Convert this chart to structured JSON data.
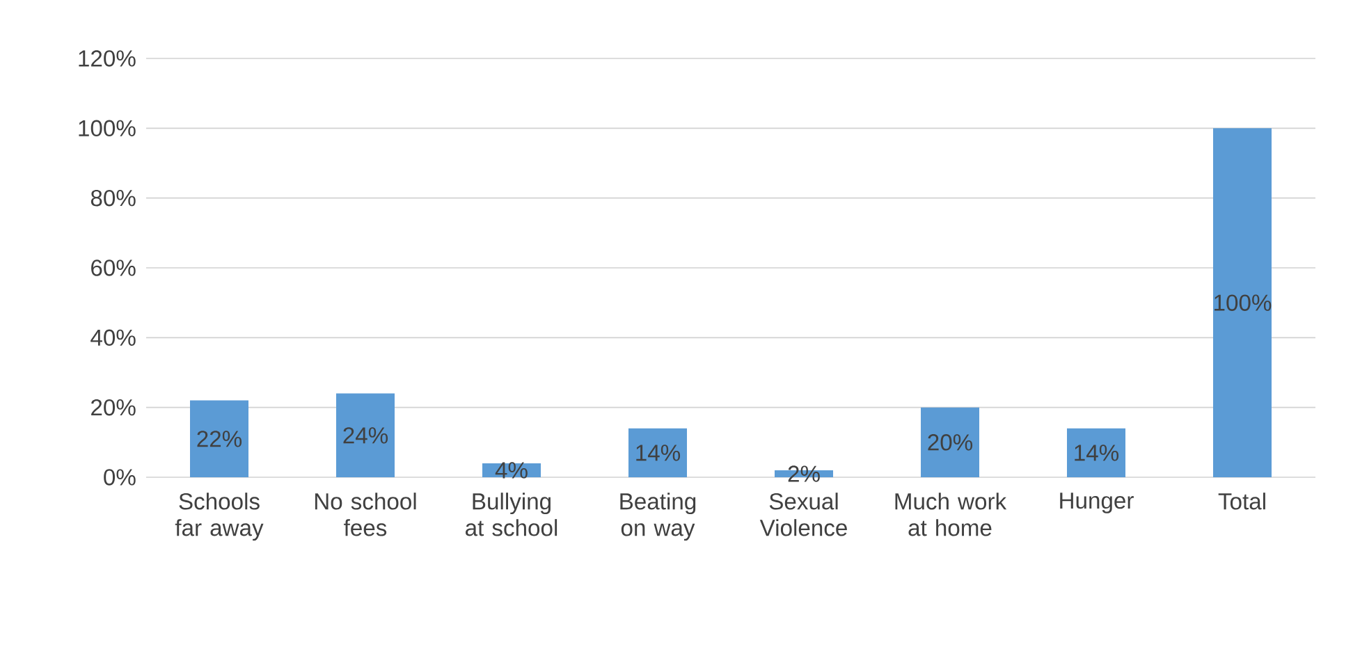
{
  "chart_data": {
    "type": "bar",
    "categories": [
      "Schools far away",
      "No school fees",
      "Bullying at school",
      "Beating on way",
      "Sexual Violence",
      "Much work at home",
      "Hunger",
      "Total"
    ],
    "values": [
      22,
      24,
      4,
      14,
      2,
      20,
      14,
      100
    ],
    "value_labels": [
      "22%",
      "24%",
      "4%",
      "14%",
      "2%",
      "20%",
      "14%",
      "100%"
    ],
    "color": "#5b9bd5",
    "ylim": [
      0,
      120
    ],
    "yticks": [
      {
        "value": 0,
        "label": "0%"
      },
      {
        "value": 20,
        "label": "20%"
      },
      {
        "value": 40,
        "label": "40%"
      },
      {
        "value": 60,
        "label": "60%"
      },
      {
        "value": 80,
        "label": "80%"
      },
      {
        "value": 100,
        "label": "100%"
      },
      {
        "value": 120,
        "label": "120%"
      }
    ],
    "grid": "y"
  }
}
